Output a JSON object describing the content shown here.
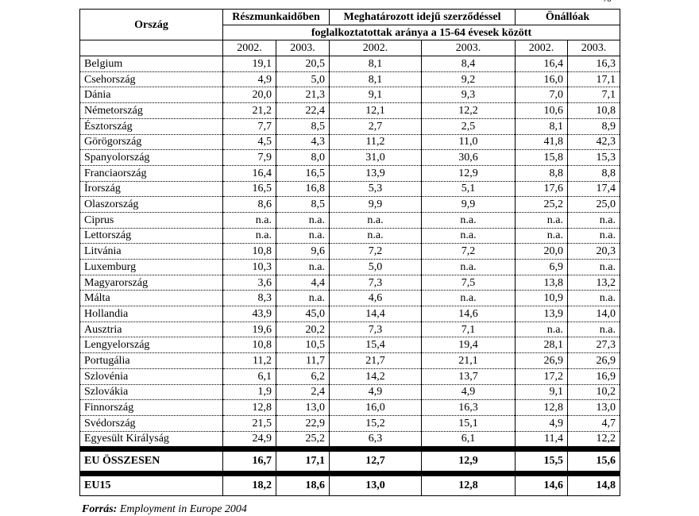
{
  "unit_marker": "%",
  "header": {
    "country": "Ország",
    "groups": [
      "Részmunkaidőben",
      "Meghatározott idejű szerződéssel",
      "Önállóak"
    ],
    "subtitle": "foglalkoztatottak aránya a 15-64 évesek között",
    "years": [
      "2002.",
      "2003.",
      "2002.",
      "2003.",
      "2002.",
      "2003."
    ]
  },
  "rows": [
    {
      "name": "Belgium",
      "v": [
        "19,1",
        "20,5",
        "8,1",
        "8,4",
        "16,4",
        "16,3"
      ]
    },
    {
      "name": "Csehország",
      "v": [
        "4,9",
        "5,0",
        "8,1",
        "9,2",
        "16,0",
        "17,1"
      ]
    },
    {
      "name": "Dánia",
      "v": [
        "20,0",
        "21,3",
        "9,1",
        "9,3",
        "7,0",
        "7,1"
      ]
    },
    {
      "name": "Németország",
      "v": [
        "21,2",
        "22,4",
        "12,1",
        "12,2",
        "10,6",
        "10,8"
      ]
    },
    {
      "name": "Észtország",
      "v": [
        "7,7",
        "8,5",
        "2,7",
        "2,5",
        "8,1",
        "8,9"
      ]
    },
    {
      "name": "Görögország",
      "v": [
        "4,5",
        "4,3",
        "11,2",
        "11,0",
        "41,8",
        "42,3"
      ]
    },
    {
      "name": "Spanyolország",
      "v": [
        "7,9",
        "8,0",
        "31,0",
        "30,6",
        "15,8",
        "15,3"
      ]
    },
    {
      "name": "Franciaország",
      "v": [
        "16,4",
        "16,5",
        "13,9",
        "12,9",
        "8,8",
        "8,8"
      ]
    },
    {
      "name": "Írország",
      "v": [
        "16,5",
        "16,8",
        "5,3",
        "5,1",
        "17,6",
        "17,4"
      ]
    },
    {
      "name": "Olaszország",
      "v": [
        "8,6",
        "8,5",
        "9,9",
        "9,9",
        "25,2",
        "25,0"
      ]
    },
    {
      "name": "Ciprus",
      "v": [
        "n.a.",
        "n.a.",
        "n.a.",
        "n.a.",
        "n.a.",
        "n.a."
      ]
    },
    {
      "name": "Lettország",
      "v": [
        "n.a.",
        "n.a.",
        "n.a.",
        "n.a.",
        "n.a.",
        "n.a."
      ]
    },
    {
      "name": "Litvánia",
      "v": [
        "10,8",
        "9,6",
        "7,2",
        "7,2",
        "20,0",
        "20,3"
      ]
    },
    {
      "name": "Luxemburg",
      "v": [
        "10,3",
        "n.a.",
        "5,0",
        "n.a.",
        "6,9",
        "n.a."
      ]
    },
    {
      "name": "Magyarország",
      "v": [
        "3,6",
        "4,4",
        "7,3",
        "7,5",
        "13,8",
        "13,2"
      ]
    },
    {
      "name": "Málta",
      "v": [
        "8,3",
        "n.a.",
        "4,6",
        "n.a.",
        "10,9",
        "n.a."
      ]
    },
    {
      "name": "Hollandia",
      "v": [
        "43,9",
        "45,0",
        "14,4",
        "14,6",
        "13,9",
        "14,0"
      ]
    },
    {
      "name": "Ausztria",
      "v": [
        "19,6",
        "20,2",
        "7,3",
        "7,1",
        "n.a.",
        "n.a."
      ]
    },
    {
      "name": "Lengyelország",
      "v": [
        "10,8",
        "10,5",
        "15,4",
        "19,4",
        "28,1",
        "27,3"
      ]
    },
    {
      "name": "Portugália",
      "v": [
        "11,2",
        "11,7",
        "21,7",
        "21,1",
        "26,9",
        "26,9"
      ]
    },
    {
      "name": "Szlovénia",
      "v": [
        "6,1",
        "6,2",
        "14,2",
        "13,7",
        "17,2",
        "16,9"
      ]
    },
    {
      "name": "Szlovákia",
      "v": [
        "1,9",
        "2,4",
        "4,9",
        "4,9",
        "9,1",
        "10,2"
      ]
    },
    {
      "name": "Finnország",
      "v": [
        "12,8",
        "13,0",
        "16,0",
        "16,3",
        "12,8",
        "13,0"
      ]
    },
    {
      "name": "Svédország",
      "v": [
        "21,5",
        "22,9",
        "15,2",
        "15,1",
        "4,9",
        "4,7"
      ]
    },
    {
      "name": "Egyesült Királyság",
      "v": [
        "24,9",
        "25,2",
        "6,3",
        "6,1",
        "11,4",
        "12,2"
      ]
    }
  ],
  "totals": [
    {
      "name": "EU ÖSSZESEN",
      "v": [
        "16,7",
        "17,1",
        "12,7",
        "12,9",
        "15,5",
        "15,6"
      ]
    },
    {
      "name": "EU15",
      "v": [
        "18,2",
        "18,6",
        "13,0",
        "12,8",
        "14,6",
        "14,8"
      ]
    }
  ],
  "footer": {
    "label": "Forrás:",
    "text": "Employment in Europe 2004"
  }
}
